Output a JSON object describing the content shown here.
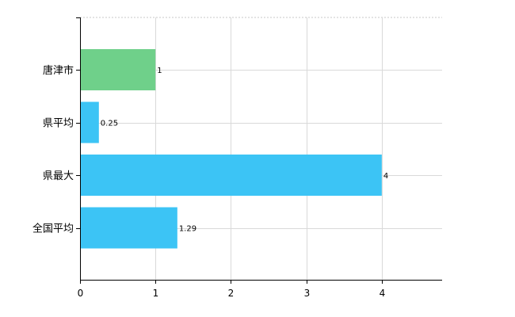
{
  "chart_data": {
    "type": "bar",
    "orientation": "horizontal",
    "categories": [
      "唐津市",
      "県平均",
      "県最大",
      "全国平均"
    ],
    "values": [
      1,
      0.25,
      4,
      1.29
    ],
    "value_labels": [
      "1",
      "0.25",
      "4",
      "1.29"
    ],
    "bar_colors": [
      "#6fd08a",
      "#3cc4f5",
      "#3cc4f5",
      "#3cc4f5"
    ],
    "xlim": [
      0,
      4.8
    ],
    "xticks": [
      0,
      1,
      2,
      3,
      4
    ],
    "grid": true,
    "title": "",
    "xlabel": "",
    "ylabel": ""
  }
}
